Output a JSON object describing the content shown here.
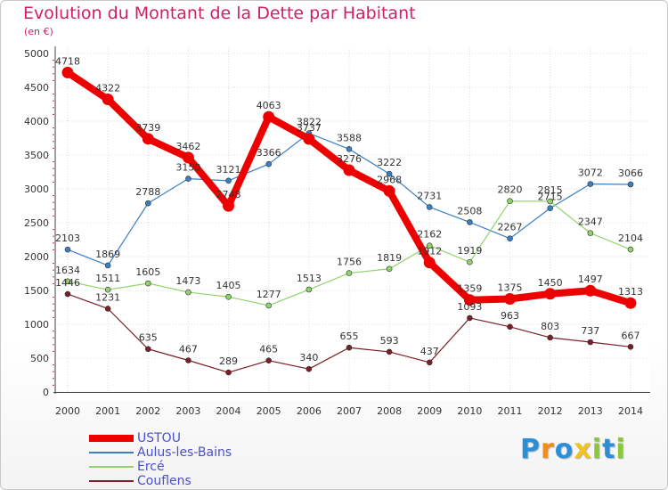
{
  "chart_data": {
    "type": "line",
    "title": "Evolution du Montant de la Dette par Habitant",
    "subtitle": "(en €)",
    "x": [
      "2000",
      "2001",
      "2002",
      "2003",
      "2004",
      "2005",
      "2006",
      "2007",
      "2008",
      "2009",
      "2010",
      "2011",
      "2012",
      "2013",
      "2014"
    ],
    "yticks": [
      "0",
      "500",
      "1000",
      "1500",
      "2000",
      "2500",
      "3000",
      "3500",
      "4000",
      "4500",
      "5000"
    ],
    "ylim": [
      0,
      5000
    ],
    "grid": true,
    "legend_position": "bottom-left",
    "series": [
      {
        "name": "USTOU",
        "color": "#ee0000",
        "values": [
          4718,
          4322,
          3739,
          3462,
          2748,
          4063,
          3737,
          3276,
          2968,
          1912,
          1359,
          1375,
          1450,
          1497,
          1313
        ]
      },
      {
        "name": "Aulus-les-Bains",
        "color": "#3a7fc4",
        "values": [
          2103,
          1869,
          2788,
          3150,
          3121,
          3366,
          3822,
          3588,
          3222,
          2731,
          2508,
          2267,
          2715,
          3072,
          3066
        ]
      },
      {
        "name": "Ercé",
        "color": "#8fd46a",
        "values": [
          1634,
          1511,
          1605,
          1473,
          1405,
          1277,
          1513,
          1756,
          1819,
          2162,
          1919,
          2820,
          2815,
          2347,
          2104
        ]
      },
      {
        "name": "Couflens",
        "color": "#7a1f25",
        "values": [
          1446,
          1231,
          635,
          467,
          289,
          465,
          340,
          655,
          593,
          437,
          1093,
          963,
          803,
          737,
          667
        ]
      }
    ],
    "labels": [
      [
        "4718",
        "4322",
        "3739",
        "3462",
        "2748",
        "4063",
        "3737",
        "3276",
        "2968",
        "1912",
        "1359",
        "1375",
        "1450",
        "1497",
        "1313"
      ],
      [
        "2103",
        "1869",
        "2788",
        "3150",
        "3121",
        "3366",
        "3822",
        "3588",
        "3222",
        "2731",
        "2508",
        "2267",
        "2715",
        "3072",
        "3066"
      ],
      [
        "1634",
        "1511",
        "1605",
        "1473",
        "1405",
        "1277",
        "1513",
        "1756",
        "1819",
        "2162",
        "1919",
        "2820",
        "2815",
        "2347",
        "2104"
      ],
      [
        "1446",
        "1231",
        "635",
        "467",
        "289",
        "465",
        "340",
        "655",
        "593",
        "437",
        "1093",
        "963",
        "803",
        "737",
        "667"
      ]
    ]
  },
  "brand": {
    "logo_letters": [
      "P",
      "r",
      "o",
      "x",
      "i",
      "t",
      "i"
    ],
    "logo_colors": [
      "#2a8fd8",
      "#f28c1e",
      "#2a8fd8",
      "#f2c21e",
      "#8cc63f",
      "#2a8fd8",
      "#8cc63f"
    ]
  }
}
